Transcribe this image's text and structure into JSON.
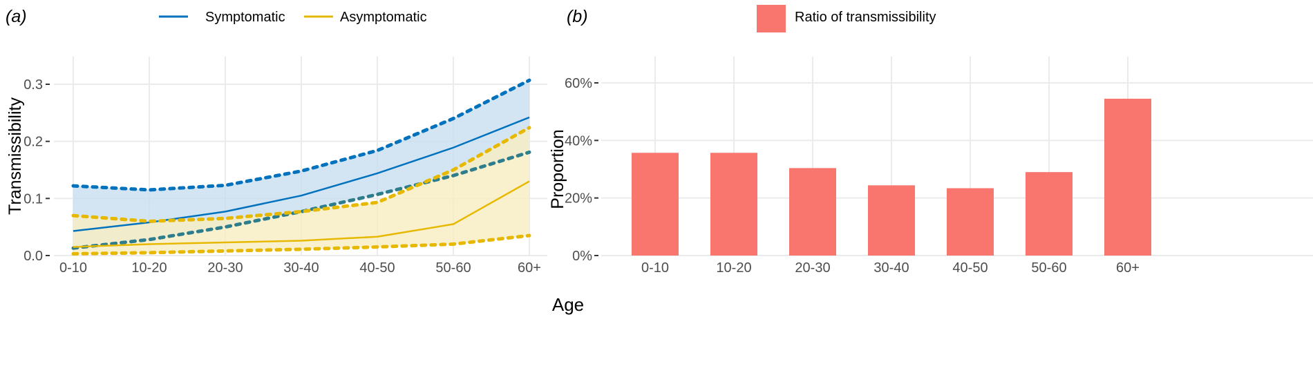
{
  "chart_data": [
    {
      "type": "line",
      "panel_label": "(a)",
      "ylabel": "Transmissibility",
      "xlabel": "Age",
      "categories": [
        "0-10",
        "10-20",
        "20-30",
        "30-40",
        "40-50",
        "50-60",
        "60+"
      ],
      "ylim": [
        0,
        0.33
      ],
      "yticks": [
        0.0,
        0.1,
        0.2,
        0.3
      ],
      "ytick_labels": [
        "0.0",
        "0.1",
        "0.2",
        "0.3"
      ],
      "grid": true,
      "legend_position": "top",
      "series": [
        {
          "name": "Symptomatic",
          "color": "#0072BD",
          "band_color": "#C8DFF0",
          "values": [
            0.043,
            0.058,
            0.077,
            0.105,
            0.144,
            0.189,
            0.242
          ],
          "upper": [
            0.122,
            0.115,
            0.123,
            0.148,
            0.184,
            0.24,
            0.307
          ],
          "lower": [
            0.013,
            0.028,
            0.05,
            0.077,
            0.107,
            0.14,
            0.181
          ]
        },
        {
          "name": "Asymptomatic",
          "color": "#E7B800",
          "band_color": "#F8EDC2",
          "values": [
            0.015,
            0.02,
            0.023,
            0.026,
            0.033,
            0.055,
            0.13
          ],
          "upper": [
            0.07,
            0.06,
            0.065,
            0.077,
            0.093,
            0.15,
            0.224
          ],
          "lower": [
            0.003,
            0.005,
            0.008,
            0.011,
            0.015,
            0.02,
            0.035
          ]
        }
      ]
    },
    {
      "type": "bar",
      "panel_label": "(b)",
      "ylabel": "Proportion",
      "categories": [
        "0-10",
        "10-20",
        "20-30",
        "30-40",
        "40-50",
        "50-60",
        "60+"
      ],
      "values": [
        35.7,
        35.7,
        30.4,
        24.4,
        23.4,
        29.0,
        54.5
      ],
      "ylim": [
        0,
        65
      ],
      "yticks": [
        0,
        20,
        40,
        60
      ],
      "ytick_labels": [
        "0%",
        "20%",
        "40%",
        "60%"
      ],
      "grid": true,
      "legend_position": "top",
      "series_name": "Ratio of transmissibility",
      "color": "#F8766D"
    }
  ],
  "shared_xlabel": "Age"
}
